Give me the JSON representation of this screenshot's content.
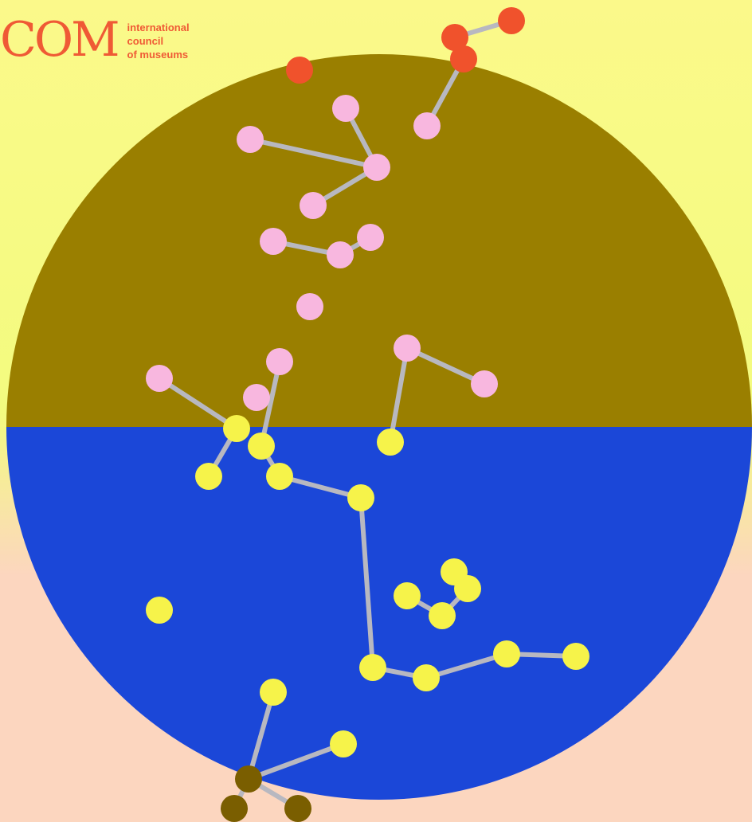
{
  "colors": {
    "bg_top": "#fbf98a",
    "bg_mid": "#f3fb7f",
    "bg_bottom": "#fcd6bf",
    "circle_top_from": "#9a7f00",
    "circle_top_to": "#b89700",
    "circle_bottom_from": "#8e3cf7",
    "circle_bottom_to": "#1b47d8",
    "logo": "#ef5a35",
    "link": "#b8b8c0",
    "node_red": "#f0522c",
    "node_pink": "#f8b7df",
    "node_yellow": "#f6f34a",
    "node_dark": "#7a5e00"
  },
  "logo": {
    "mark": "COM",
    "lines": [
      "international",
      "council",
      "of museums"
    ]
  }
}
